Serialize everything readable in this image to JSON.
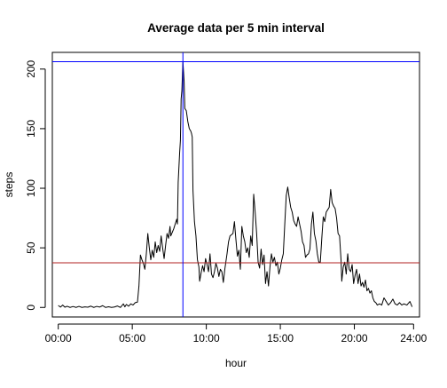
{
  "chart_data": {
    "type": "line",
    "title": "Average data per 5 min interval",
    "xlabel": "hour",
    "ylabel": "steps",
    "xlim": [
      -0.4,
      24.4
    ],
    "ylim": [
      -8,
      214
    ],
    "x_ticks": [
      {
        "value": 0,
        "label": "00:00"
      },
      {
        "value": 5,
        "label": "05:00"
      },
      {
        "value": 10,
        "label": "10:00"
      },
      {
        "value": 15,
        "label": "15:00"
      },
      {
        "value": 20,
        "label": "20:00"
      },
      {
        "value": 24,
        "label": "24:00"
      }
    ],
    "y_ticks": [
      0,
      50,
      100,
      150,
      200
    ],
    "grid": false,
    "series": [
      {
        "color": "#000000",
        "points": [
          [
            0.0,
            1.7
          ],
          [
            0.15,
            0.3
          ],
          [
            0.3,
            2.0
          ],
          [
            0.45,
            0.2
          ],
          [
            0.6,
            1.0
          ],
          [
            0.8,
            0.0
          ],
          [
            1.0,
            0.8
          ],
          [
            1.2,
            0.0
          ],
          [
            1.4,
            0.9
          ],
          [
            1.6,
            0.0
          ],
          [
            1.8,
            0.5
          ],
          [
            2.0,
            0.2
          ],
          [
            2.2,
            1.1
          ],
          [
            2.4,
            0.0
          ],
          [
            2.6,
            0.9
          ],
          [
            2.8,
            0.3
          ],
          [
            3.0,
            1.5
          ],
          [
            3.2,
            0.0
          ],
          [
            3.4,
            0.6
          ],
          [
            3.6,
            0.0
          ],
          [
            3.8,
            0.4
          ],
          [
            4.0,
            1.2
          ],
          [
            4.2,
            0.0
          ],
          [
            4.4,
            3.0
          ],
          [
            4.5,
            0.5
          ],
          [
            4.6,
            2.5
          ],
          [
            4.75,
            1.0
          ],
          [
            4.9,
            3.0
          ],
          [
            5.05,
            2.0
          ],
          [
            5.2,
            4.0
          ],
          [
            5.35,
            4.5
          ],
          [
            5.45,
            18.0
          ],
          [
            5.55,
            44.0
          ],
          [
            5.65,
            40.0
          ],
          [
            5.75,
            37.0
          ],
          [
            5.85,
            32.0
          ],
          [
            5.95,
            45.0
          ],
          [
            6.05,
            62.0
          ],
          [
            6.15,
            50.0
          ],
          [
            6.25,
            40.0
          ],
          [
            6.35,
            48.0
          ],
          [
            6.45,
            42.0
          ],
          [
            6.55,
            55.0
          ],
          [
            6.65,
            46.0
          ],
          [
            6.75,
            52.0
          ],
          [
            6.85,
            47.0
          ],
          [
            6.95,
            60.0
          ],
          [
            7.05,
            50.0
          ],
          [
            7.15,
            41.0
          ],
          [
            7.25,
            52.0
          ],
          [
            7.35,
            62.0
          ],
          [
            7.45,
            58.0
          ],
          [
            7.55,
            68.0
          ],
          [
            7.6,
            60.0
          ],
          [
            7.7,
            63.0
          ],
          [
            7.8,
            66.0
          ],
          [
            7.9,
            70.0
          ],
          [
            8.0,
            74.0
          ],
          [
            8.05,
            70.0
          ],
          [
            8.1,
            105.0
          ],
          [
            8.2,
            130.0
          ],
          [
            8.25,
            140.0
          ],
          [
            8.3,
            175.0
          ],
          [
            8.35,
            182.0
          ],
          [
            8.42,
            206.2
          ],
          [
            8.5,
            190.0
          ],
          [
            8.55,
            167.0
          ],
          [
            8.65,
            165.0
          ],
          [
            8.75,
            156.0
          ],
          [
            8.85,
            150.0
          ],
          [
            8.95,
            148.0
          ],
          [
            9.0,
            146.0
          ],
          [
            9.05,
            143.0
          ],
          [
            9.1,
            98.0
          ],
          [
            9.2,
            72.0
          ],
          [
            9.3,
            60.0
          ],
          [
            9.4,
            40.0
          ],
          [
            9.5,
            34.0
          ],
          [
            9.55,
            22.0
          ],
          [
            9.65,
            29.0
          ],
          [
            9.75,
            35.0
          ],
          [
            9.85,
            30.0
          ],
          [
            9.95,
            41.0
          ],
          [
            10.05,
            36.0
          ],
          [
            10.15,
            30.0
          ],
          [
            10.25,
            45.0
          ],
          [
            10.35,
            28.0
          ],
          [
            10.45,
            25.0
          ],
          [
            10.55,
            30.0
          ],
          [
            10.65,
            37.0
          ],
          [
            10.75,
            33.0
          ],
          [
            10.85,
            26.0
          ],
          [
            10.95,
            32.0
          ],
          [
            11.05,
            30.0
          ],
          [
            11.15,
            21.0
          ],
          [
            11.25,
            32.0
          ],
          [
            11.4,
            45.0
          ],
          [
            11.5,
            55.0
          ],
          [
            11.6,
            60.0
          ],
          [
            11.7,
            61.0
          ],
          [
            11.8,
            62.0
          ],
          [
            11.9,
            72.0
          ],
          [
            12.0,
            57.0
          ],
          [
            12.1,
            43.0
          ],
          [
            12.2,
            48.0
          ],
          [
            12.3,
            32.0
          ],
          [
            12.4,
            68.0
          ],
          [
            12.5,
            60.0
          ],
          [
            12.6,
            55.0
          ],
          [
            12.7,
            46.0
          ],
          [
            12.8,
            50.0
          ],
          [
            12.9,
            42.0
          ],
          [
            13.0,
            60.0
          ],
          [
            13.1,
            52.0
          ],
          [
            13.2,
            95.0
          ],
          [
            13.3,
            80.0
          ],
          [
            13.4,
            62.0
          ],
          [
            13.5,
            38.0
          ],
          [
            13.6,
            33.0
          ],
          [
            13.7,
            49.0
          ],
          [
            13.8,
            36.0
          ],
          [
            13.9,
            44.0
          ],
          [
            14.0,
            20.0
          ],
          [
            14.1,
            30.0
          ],
          [
            14.2,
            18.0
          ],
          [
            14.3,
            34.0
          ],
          [
            14.4,
            45.0
          ],
          [
            14.5,
            38.0
          ],
          [
            14.6,
            42.0
          ],
          [
            14.7,
            35.0
          ],
          [
            14.8,
            38.0
          ],
          [
            14.9,
            28.0
          ],
          [
            15.0,
            33.0
          ],
          [
            15.1,
            40.0
          ],
          [
            15.2,
            45.0
          ],
          [
            15.3,
            70.0
          ],
          [
            15.4,
            94.0
          ],
          [
            15.5,
            101.0
          ],
          [
            15.6,
            92.0
          ],
          [
            15.7,
            84.0
          ],
          [
            15.8,
            80.0
          ],
          [
            15.9,
            73.0
          ],
          [
            16.0,
            70.0
          ],
          [
            16.1,
            68.0
          ],
          [
            16.2,
            76.0
          ],
          [
            16.3,
            70.0
          ],
          [
            16.4,
            64.0
          ],
          [
            16.5,
            55.0
          ],
          [
            16.6,
            52.0
          ],
          [
            16.7,
            42.0
          ],
          [
            16.8,
            44.0
          ],
          [
            16.9,
            45.0
          ],
          [
            17.0,
            49.0
          ],
          [
            17.1,
            70.0
          ],
          [
            17.2,
            80.0
          ],
          [
            17.3,
            62.0
          ],
          [
            17.4,
            56.0
          ],
          [
            17.5,
            45.0
          ],
          [
            17.6,
            38.0
          ],
          [
            17.7,
            38.0
          ],
          [
            17.8,
            58.0
          ],
          [
            17.9,
            76.0
          ],
          [
            18.0,
            72.0
          ],
          [
            18.1,
            80.0
          ],
          [
            18.2,
            82.0
          ],
          [
            18.3,
            84.0
          ],
          [
            18.4,
            99.0
          ],
          [
            18.5,
            88.0
          ],
          [
            18.6,
            85.0
          ],
          [
            18.7,
            83.0
          ],
          [
            18.8,
            75.0
          ],
          [
            18.9,
            62.0
          ],
          [
            19.0,
            60.0
          ],
          [
            19.1,
            40.0
          ],
          [
            19.15,
            22.0
          ],
          [
            19.25,
            34.0
          ],
          [
            19.35,
            38.0
          ],
          [
            19.45,
            28.0
          ],
          [
            19.55,
            45.0
          ],
          [
            19.65,
            32.0
          ],
          [
            19.75,
            30.0
          ],
          [
            19.85,
            36.0
          ],
          [
            19.95,
            20.0
          ],
          [
            20.05,
            27.0
          ],
          [
            20.15,
            32.0
          ],
          [
            20.25,
            20.0
          ],
          [
            20.35,
            28.0
          ],
          [
            20.45,
            18.0
          ],
          [
            20.55,
            21.0
          ],
          [
            20.65,
            17.0
          ],
          [
            20.75,
            23.0
          ],
          [
            20.85,
            14.0
          ],
          [
            20.95,
            16.0
          ],
          [
            21.05,
            12.0
          ],
          [
            21.15,
            14.0
          ],
          [
            21.25,
            8.0
          ],
          [
            21.35,
            5.0
          ],
          [
            21.45,
            4.0
          ],
          [
            21.55,
            2.0
          ],
          [
            21.7,
            3.0
          ],
          [
            21.85,
            2.0
          ],
          [
            22.0,
            8.0
          ],
          [
            22.15,
            5.0
          ],
          [
            22.3,
            2.0
          ],
          [
            22.45,
            4.0
          ],
          [
            22.6,
            7.0
          ],
          [
            22.75,
            3.0
          ],
          [
            22.9,
            2.0
          ],
          [
            23.05,
            4.0
          ],
          [
            23.2,
            2.0
          ],
          [
            23.35,
            3.0
          ],
          [
            23.55,
            2.0
          ],
          [
            23.75,
            5.0
          ],
          [
            23.9,
            0.5
          ]
        ]
      }
    ],
    "reference_lines": [
      {
        "orientation": "horizontal",
        "value": 206.2,
        "color": "#0000ff"
      },
      {
        "orientation": "horizontal",
        "value": 37.4,
        "color": "#b22222"
      },
      {
        "orientation": "vertical",
        "value": 8.42,
        "color": "#0000ff"
      }
    ]
  }
}
